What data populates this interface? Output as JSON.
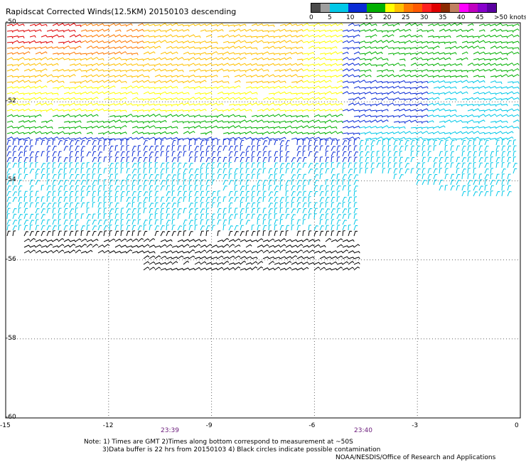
{
  "title": "Rapidscat Corrected Winds(12.5KM) 20150103 descending",
  "legend": {
    "colors": [
      "#4a4a4a",
      "#9e9e9e",
      "#00c8e8",
      "#00c8e8",
      "#0a2cd6",
      "#0a2cd6",
      "#00b000",
      "#00b000",
      "#ffff00",
      "#ffc000",
      "#ff7a00",
      "#ff5a00",
      "#ff2020",
      "#e00000",
      "#8b2a00",
      "#c08060",
      "#ff00ff",
      "#c000c0",
      "#8800cc",
      "#5a00a0"
    ],
    "labels": [
      "0",
      "5",
      "10",
      "15",
      "20",
      "25",
      "30",
      "35",
      "40",
      "45",
      ">50 knots"
    ]
  },
  "axes": {
    "x_ticks": [
      "-15",
      "-12",
      "-9",
      "-6",
      "-3",
      "0"
    ],
    "y_ticks": [
      "-50",
      "-52",
      "-54",
      "-56",
      "-58",
      "-60"
    ]
  },
  "time_labels": [
    "23:39",
    "23:40"
  ],
  "notes": [
    "Note: 1) Times are GMT 2)Times along bottom correspond to measurement at ~50S",
    "3)Data buffer is 22 hrs from 20150103 4) Black circles indicate possible contamination",
    "NOAA/NESDIS/Office of Research and Applications"
  ]
}
